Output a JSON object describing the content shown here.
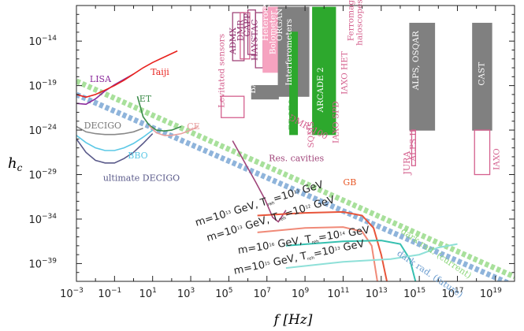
{
  "chart_data": {
    "type": "line",
    "title": "",
    "xlabel": "f [Hz]",
    "ylabel": "h_c",
    "xscale": "log",
    "yscale": "log",
    "xlim_log10": [
      -3,
      20
    ],
    "ylim_log10": [
      -41,
      -10
    ],
    "grid": false,
    "x_ticks": [
      {
        "e": -3,
        "label": "10",
        "sup": "−3"
      },
      {
        "e": -1,
        "label": "10",
        "sup": "−1"
      },
      {
        "e": 1,
        "label": "10",
        "sup": "1"
      },
      {
        "e": 3,
        "label": "10",
        "sup": "3"
      },
      {
        "e": 5,
        "label": "10",
        "sup": "5"
      },
      {
        "e": 7,
        "label": "10",
        "sup": "7"
      },
      {
        "e": 9,
        "label": "10",
        "sup": "9"
      },
      {
        "e": 11,
        "label": "10",
        "sup": "11"
      },
      {
        "e": 13,
        "label": "10",
        "sup": "13"
      },
      {
        "e": 15,
        "label": "10",
        "sup": "15"
      },
      {
        "e": 17,
        "label": "10",
        "sup": "17"
      },
      {
        "e": 19,
        "label": "10",
        "sup": "19"
      }
    ],
    "y_ticks": [
      {
        "e": -14,
        "label": "10",
        "sup": "−14"
      },
      {
        "e": -19,
        "label": "10",
        "sup": "−19"
      },
      {
        "e": -24,
        "label": "10",
        "sup": "−24"
      },
      {
        "e": -29,
        "label": "10",
        "sup": "−29"
      },
      {
        "e": -34,
        "label": "10",
        "sup": "−34"
      },
      {
        "e": -39,
        "label": "10",
        "sup": "−39"
      }
    ],
    "series": [
      {
        "name": "LISA",
        "color": "#8b2a9c",
        "points": [
          [
            -4,
            -19.0
          ],
          [
            -3.5,
            -20.2
          ],
          [
            -3,
            -21.0
          ],
          [
            -2.5,
            -21.1
          ],
          [
            -2,
            -20.5
          ],
          [
            -1.5,
            -19.6
          ],
          [
            -1,
            -18.9
          ],
          [
            -0.5,
            -18.3
          ],
          [
            0,
            -17.7
          ]
        ]
      },
      {
        "name": "Taiji",
        "color": "#e8211d",
        "points": [
          [
            -3,
            -20.0
          ],
          [
            -2.5,
            -20.3
          ],
          [
            -2,
            -20.0
          ],
          [
            -1.5,
            -19.5
          ],
          [
            -1,
            -19.0
          ],
          [
            -0.5,
            -18.4
          ],
          [
            0,
            -17.7
          ],
          [
            0.5,
            -17.0
          ],
          [
            1,
            -16.4
          ],
          [
            1.5,
            -15.9
          ],
          [
            2,
            -15.4
          ],
          [
            2.3,
            -15.1
          ]
        ]
      },
      {
        "name": "ET",
        "color": "#3c8c4a",
        "points": [
          [
            0.2,
            -20.2
          ],
          [
            0.5,
            -22.5
          ],
          [
            0.8,
            -23.4
          ],
          [
            1.2,
            -24.0
          ],
          [
            1.6,
            -24.1
          ],
          [
            2,
            -24.0
          ],
          [
            2.5,
            -23.6
          ]
        ]
      },
      {
        "name": "CE",
        "color": "#e8a0a0",
        "points": [
          [
            0.8,
            -23.5
          ],
          [
            1.2,
            -24.3
          ],
          [
            1.6,
            -24.6
          ],
          [
            2,
            -24.6
          ],
          [
            2.5,
            -24.4
          ],
          [
            3,
            -24.0
          ],
          [
            3.4,
            -23.6
          ]
        ]
      },
      {
        "name": "DECIGO",
        "color": "#888888",
        "points": [
          [
            -3,
            -23.6
          ],
          [
            -2.5,
            -24.2
          ],
          [
            -2,
            -24.4
          ],
          [
            -1.5,
            -24.5
          ],
          [
            -1,
            -24.5
          ],
          [
            -0.5,
            -24.4
          ],
          [
            0,
            -24.2
          ],
          [
            0.5,
            -23.8
          ]
        ]
      },
      {
        "name": "BBO",
        "color": "#5cc8e6",
        "points": [
          [
            -3,
            -24.6
          ],
          [
            -2.5,
            -25.4
          ],
          [
            -2,
            -26.0
          ],
          [
            -1.5,
            -26.3
          ],
          [
            -1,
            -26.3
          ],
          [
            -0.5,
            -26.0
          ],
          [
            0,
            -25.5
          ],
          [
            0.5,
            -24.8
          ],
          [
            1,
            -24.0
          ]
        ]
      },
      {
        "name": "ultimate DECIGO",
        "color": "#5a5a8a",
        "points": [
          [
            -3,
            -25.0
          ],
          [
            -2.5,
            -26.5
          ],
          [
            -2,
            -27.4
          ],
          [
            -1.5,
            -27.7
          ],
          [
            -1,
            -27.7
          ],
          [
            -0.5,
            -27.2
          ],
          [
            0,
            -26.5
          ],
          [
            0.5,
            -25.5
          ],
          [
            1,
            -24.4
          ]
        ]
      },
      {
        "name": "Res. cavities",
        "color": "#a0457a",
        "points": [
          [
            5.2,
            -25.2
          ],
          [
            5.8,
            -27.5
          ],
          [
            6.4,
            -29.8
          ],
          [
            6.9,
            -31.8
          ],
          [
            7.3,
            -33.8
          ],
          [
            7.6,
            -34.3
          ],
          [
            8.0,
            -33.0
          ]
        ]
      }
    ],
    "bands": [
      {
        "name": "dark rad. (current)",
        "color": "#8cd67a",
        "y_at_xmin": -18.5,
        "y_at_xmax": -40.5
      },
      {
        "name": "dark rad. (future)",
        "color": "#6a9ccf",
        "y_at_xmin": -20.0,
        "y_at_xmax": -41.5
      }
    ],
    "rectangles": [
      {
        "name": "Levitated sensors",
        "color": "#d4608e",
        "filled": false,
        "x": [
          4.6,
          5.8
        ],
        "y": [
          -22.6,
          -20.2
        ]
      },
      {
        "name": "ADMX",
        "color": "#a0457a",
        "filled": false,
        "x": [
          5.2,
          5.8
        ],
        "y": [
          -16.2,
          -10.8
        ]
      },
      {
        "name": "DMR",
        "color": "#d4608e",
        "filled": false,
        "x": [
          5.6,
          6.1
        ],
        "y": [
          -16.0,
          -10.8
        ]
      },
      {
        "name": "CAPP",
        "color": "#a0457a",
        "filled": false,
        "x": [
          6.0,
          6.4
        ],
        "y": [
          -15.5,
          -10.5
        ]
      },
      {
        "name": "HAYSTAC",
        "color": "#a0457a",
        "filled": false,
        "x": [
          6.4,
          6.8
        ],
        "y": [
          -17.0,
          -10.8
        ]
      },
      {
        "name": "Bolometer",
        "color": "#f6a3c0",
        "filled": true,
        "x": [
          6.8,
          8.1
        ],
        "y": [
          -17.5,
          -10.2
        ]
      },
      {
        "name": "BAWs",
        "color": "#808080",
        "filled": true,
        "x": [
          6.2,
          7.6
        ],
        "y": [
          -20.5,
          -19.0
        ]
      },
      {
        "name": "Interferometers",
        "color": "#808080",
        "filled": true,
        "x": [
          7.6,
          9.2
        ],
        "y": [
          -20.2,
          -10.2
        ]
      },
      {
        "name": "EDGES",
        "color": "#2da82d",
        "filled": true,
        "x": [
          8.2,
          8.6
        ],
        "y": [
          -24.5,
          -13.0
        ]
      },
      {
        "name": "ARCADE 2",
        "color": "#2da82d",
        "filled": true,
        "x": [
          9.4,
          10.6
        ],
        "y": [
          -24.5,
          -10.2
        ]
      },
      {
        "name": "ALPS, OSQAR",
        "color": "#808080",
        "filled": true,
        "x": [
          14.5,
          15.8
        ],
        "y": [
          -24.0,
          -12.0
        ]
      },
      {
        "name": "ALPS II",
        "color": "#d4608e",
        "filled": false,
        "x": [
          14.6,
          14.8
        ],
        "y": [
          -28.0,
          -24.0
        ]
      },
      {
        "name": "CAST",
        "color": "#808080",
        "filled": true,
        "x": [
          17.8,
          18.8
        ],
        "y": [
          -24.0,
          -12.0
        ]
      },
      {
        "name": "IAXO",
        "color": "#d4608e",
        "filled": false,
        "x": [
          17.9,
          18.7
        ],
        "y": [
          -29.0,
          -24.0
        ]
      }
    ],
    "annotations": [
      {
        "text": "LISA",
        "color": "#8b2a9c",
        "x": -2.3,
        "y": -18.6
      },
      {
        "text": "Taiji",
        "color": "#e8211d",
        "x": 0.9,
        "y": -17.8
      },
      {
        "text": "ET",
        "color": "#3c8c4a",
        "x": 0.3,
        "y": -20.8
      },
      {
        "text": "DECIGO",
        "color": "#777777",
        "x": -2.6,
        "y": -23.8
      },
      {
        "text": "CE",
        "color": "#e8a0a0",
        "x": 2.8,
        "y": -23.9
      },
      {
        "text": "BBO",
        "color": "#5cc8e6",
        "x": -0.3,
        "y": -27.2
      },
      {
        "text": "ultimate DECIGO",
        "color": "#5a5a8a",
        "x": -1.6,
        "y": -29.7
      },
      {
        "text": "Res. cavities",
        "color": "#a0457a",
        "x": 7.1,
        "y": -27.5
      },
      {
        "text": "DMR",
        "color": "#d4608e",
        "x": 8.1,
        "y": -22.8,
        "sub": "L",
        "suffix": "100"
      },
      {
        "text": "GB",
        "color": "#e85a2a",
        "x": 11.0,
        "y": -30.2
      },
      {
        "text": "JURA",
        "color": "#d4608e",
        "x": 14.5,
        "y": -29.0
      },
      {
        "text": "dark rad. (current)",
        "color": "#8cd67a",
        "x": 14.0,
        "y": -35.5
      },
      {
        "text": "dark rad. (future)",
        "color": "#6a9ccf",
        "x": 13.8,
        "y": -38.0
      }
    ],
    "scenario_labels": [
      {
        "m": "m=10",
        "me": "13",
        "t": " GeV, T",
        "ts": "reh",
        "te": "13",
        "tail": " GeV"
      },
      {
        "m": "m=10",
        "me": "13",
        "t": " GeV, T",
        "ts": "reh",
        "te": "12",
        "tail": " GeV"
      },
      {
        "m": "m=10",
        "me": "16",
        "t": " GeV, T",
        "ts": "reh",
        "te": "14",
        "tail": " GeV"
      },
      {
        "m": "m=10",
        "me": "15",
        "t": " GeV, T",
        "ts": "reh",
        "te": "13",
        "tail": " GeV"
      }
    ],
    "rotated_labels": [
      {
        "text": "Levitated sensors"
      },
      {
        "text": "ADMX"
      },
      {
        "text": "DMR"
      },
      {
        "text": "CAPP"
      },
      {
        "text": "HAYSTAC"
      },
      {
        "text": "Heterodyne"
      },
      {
        "text": "Bolometer"
      },
      {
        "text": "ORGAN"
      },
      {
        "text": "BAWs"
      },
      {
        "text": "Interferometers"
      },
      {
        "text": "EDGES"
      },
      {
        "text": "SQMS"
      },
      {
        "text": "ARCADE 2"
      },
      {
        "text": "IAXO SPD"
      },
      {
        "text": "IAXO HET"
      },
      {
        "text": "Ferromagnetic"
      },
      {
        "text": "haloscopes"
      },
      {
        "text": "ALPS, OSQAR"
      },
      {
        "text": "ALPS II"
      },
      {
        "text": "CAST"
      },
      {
        "text": "IAXO"
      }
    ]
  }
}
